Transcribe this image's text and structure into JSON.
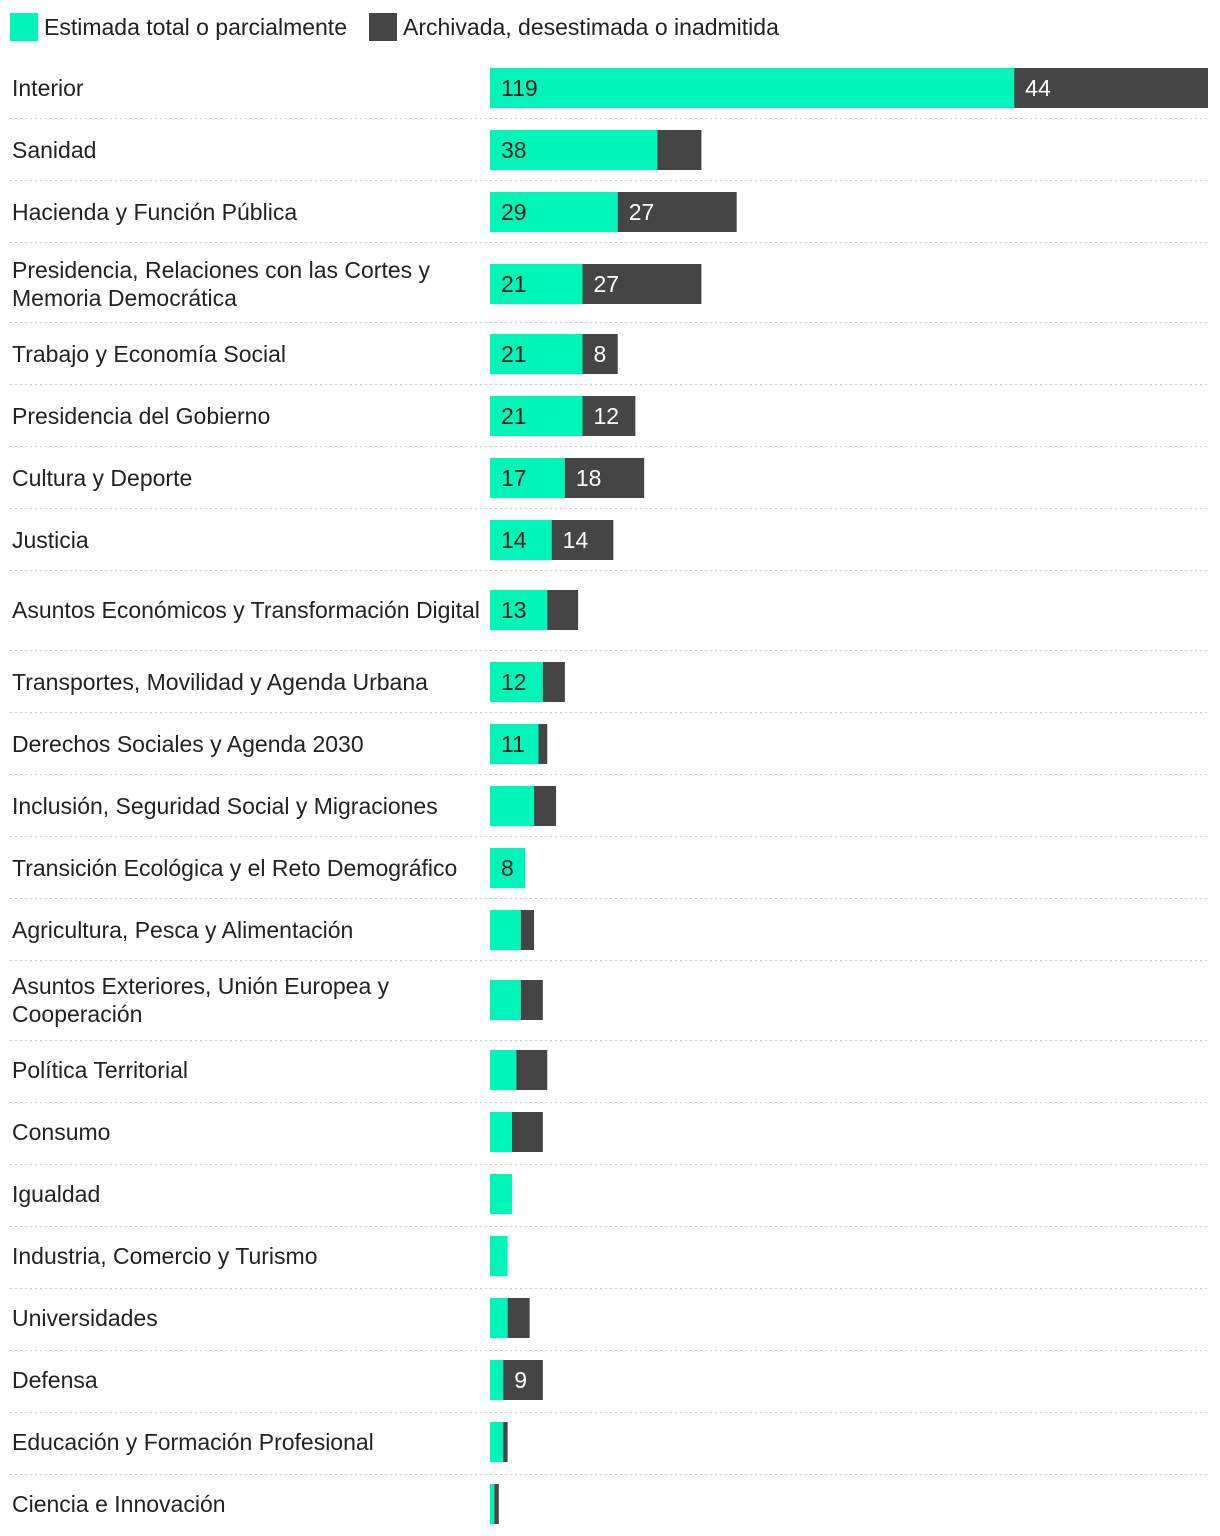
{
  "colors": {
    "estimada": "#00f5b8",
    "archivada": "#454545"
  },
  "chart_data": {
    "type": "bar",
    "orientation": "horizontal",
    "stacked": true,
    "legend": [
      {
        "name": "Estimada total o parcialmente",
        "color": "#00f5b8"
      },
      {
        "name": "Archivada, desestimada o inadmitida",
        "color": "#454545"
      }
    ],
    "xlim": [
      0,
      163
    ],
    "categories": [
      "Interior",
      "Sanidad",
      "Hacienda y Función Pública",
      "Presidencia, Relaciones con las Cortes y Memoria Democrática",
      "Trabajo y Economía Social",
      "Presidencia del Gobierno",
      "Cultura y Deporte",
      "Justicia",
      "Asuntos Económicos y Transformación Digital",
      "Transportes, Movilidad y Agenda Urbana",
      "Derechos Sociales y Agenda 2030",
      "Inclusión, Seguridad Social y Migraciones",
      "Transición Ecológica y el Reto Demográfico",
      "Agricultura, Pesca y Alimentación",
      "Asuntos Exteriores, Unión Europea y Cooperación",
      "Política Territorial",
      "Consumo",
      "Igualdad",
      "Industria, Comercio y Turismo",
      "Universidades",
      "Defensa",
      "Educación y Formación Profesional",
      "Ciencia e Innovación"
    ],
    "series": [
      {
        "name": "Estimada total o parcialmente",
        "values": [
          119,
          38,
          29,
          21,
          21,
          21,
          17,
          14,
          13,
          12,
          11,
          10,
          8,
          7,
          7,
          6,
          5,
          5,
          4,
          4,
          3,
          3,
          1
        ],
        "labels": [
          "119",
          "38",
          "29",
          "21",
          "21",
          "21",
          "17",
          "14",
          "13",
          "12",
          "11",
          "",
          "8",
          "",
          "",
          "",
          "",
          "",
          "",
          "",
          "",
          "",
          ""
        ]
      },
      {
        "name": "Archivada, desestimada o inadmitida",
        "values": [
          44,
          10,
          27,
          27,
          8,
          12,
          18,
          14,
          7,
          5,
          2,
          5,
          0,
          3,
          5,
          7,
          7,
          0,
          0,
          5,
          9,
          1,
          1
        ],
        "labels": [
          "44",
          "",
          "27",
          "27",
          "8",
          "12",
          "18",
          "14",
          "",
          "",
          "",
          "",
          "",
          "",
          "",
          "",
          "",
          "",
          "",
          "",
          "9",
          "",
          ""
        ]
      }
    ]
  }
}
